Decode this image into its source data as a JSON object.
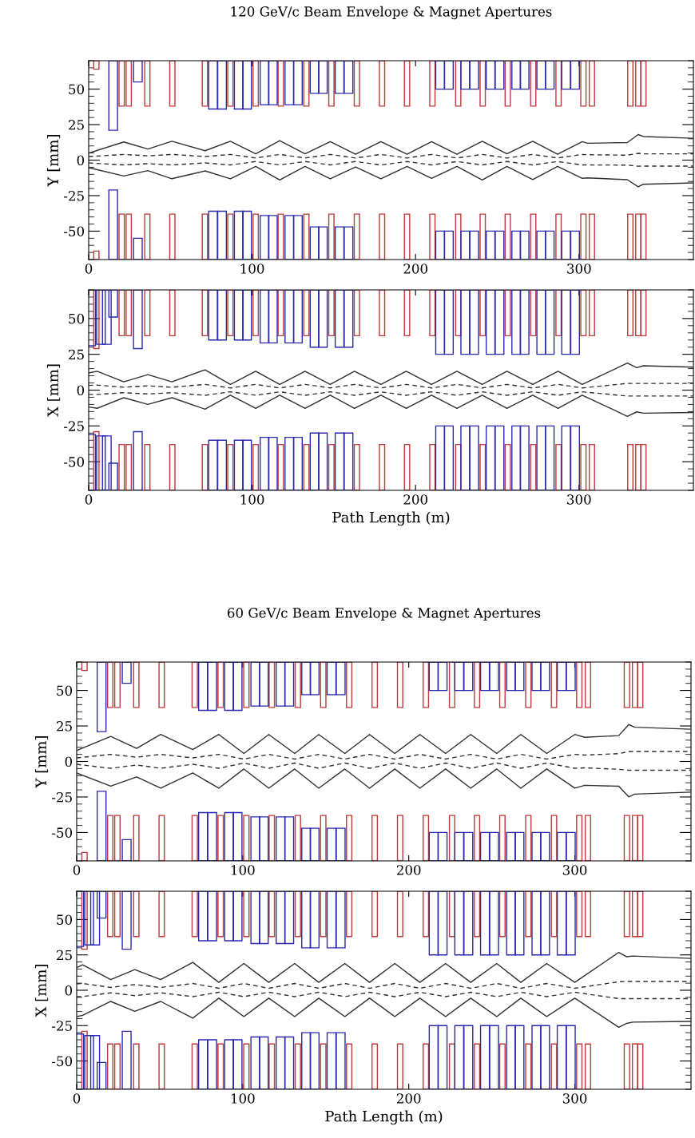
{
  "chart_data": [
    {
      "type": "line",
      "title": "120 GeV/c Beam Envelope & Magnet Apertures",
      "ylabel": "Y [mm]",
      "xlim": [
        0,
        370
      ],
      "xticks": [
        0,
        100,
        200,
        300
      ],
      "ylim": [
        -70,
        70
      ],
      "yticks": [
        -50,
        -25,
        0,
        25,
        50
      ],
      "grid": false,
      "x": [
        0,
        21.5,
        36.2,
        50.9,
        71.2,
        86.7,
        102.2,
        116.9,
        132.4,
        147.8,
        163.3,
        178.8,
        194.8,
        209.8,
        225.3,
        240.8,
        255.9,
        271.7,
        286.9,
        302,
        305.2,
        329.6,
        336.2,
        339.4,
        370
      ],
      "series": [
        {
          "color": "#303030",
          "line_style": "solid",
          "values": [
            4.9,
            12.8,
            7.8,
            13.3,
            6.6,
            13.3,
            4.4,
            13.7,
            4.4,
            13,
            4.1,
            13,
            4.1,
            13,
            4.1,
            13.3,
            4.4,
            13.3,
            4.1,
            13,
            11.9,
            12.4,
            18,
            16.6,
            15.4
          ]
        },
        {
          "color": "#303030",
          "line_style": "solid",
          "values": [
            -5.3,
            -11.2,
            -7.4,
            -13.1,
            -7.6,
            -13.1,
            -4.4,
            -14,
            -4.4,
            -13.2,
            -4.8,
            -13.2,
            -4.4,
            -12.8,
            -4.4,
            -14,
            -4.4,
            -13.7,
            -4.4,
            -12.8,
            -12.5,
            -13.8,
            -18.8,
            -17,
            -16
          ]
        },
        {
          "color": "#303030",
          "line_style": "dashed",
          "values": [
            2.5,
            4,
            3,
            4,
            2.5,
            4,
            1.5,
            4,
            1.5,
            4,
            1.5,
            4,
            1.5,
            4,
            1.5,
            4,
            1.5,
            4,
            1.5,
            4,
            3.8,
            3.5,
            4.8,
            4.4,
            4.4
          ]
        },
        {
          "color": "#303030",
          "line_style": "dashed",
          "values": [
            -2,
            -3.4,
            -2.5,
            -3.4,
            -2,
            -3.4,
            -1,
            -3.4,
            -1,
            -3.4,
            -1,
            -3.4,
            -1,
            -3.4,
            -1,
            -3.4,
            -1,
            -3.4,
            -1,
            -3.4,
            -3.4,
            -3.5,
            -4.3,
            -4.2,
            -4.2
          ]
        },
        {
          "type": "bar",
          "color": "#c0393b",
          "x": [
            4.7,
            20.2,
            24.5,
            35.9,
            51.2,
            71.1,
            86.7,
            102.2,
            117.5,
            133.2,
            148.5,
            164.1,
            179.5,
            194.8,
            210.3,
            226.1,
            241.1,
            256.4,
            272.0,
            287.5,
            302.7,
            307.9,
            331.4,
            336.3,
            339.4
          ],
          "base": [
            64,
            38,
            38,
            38,
            38,
            38,
            38,
            38,
            38,
            38,
            38,
            38,
            38,
            38,
            38,
            38,
            38,
            38,
            38,
            38,
            38,
            38,
            38,
            38,
            38
          ],
          "values": [
            6,
            32,
            32,
            32,
            32,
            32,
            32,
            32,
            32,
            32,
            32,
            32,
            32,
            32,
            32,
            32,
            32,
            32,
            32,
            32,
            32,
            32,
            32,
            32,
            32
          ]
        },
        {
          "type": "bar",
          "color": "#c0393b",
          "x": [
            4.7,
            20.2,
            24.5,
            35.9,
            51.2,
            71.1,
            86.7,
            102.2,
            117.5,
            133.2,
            148.5,
            164.1,
            179.5,
            194.8,
            210.3,
            226.1,
            241.1,
            256.4,
            272.0,
            287.5,
            302.7,
            307.9,
            331.4,
            336.3,
            339.4
          ],
          "base": [
            -64,
            -38,
            -38,
            -38,
            -38,
            -38,
            -38,
            -38,
            -38,
            -38,
            -38,
            -38,
            -38,
            -38,
            -38,
            -38,
            -38,
            -38,
            -38,
            -38,
            -38,
            -38,
            -38,
            -38,
            -38
          ],
          "values": [
            -6,
            -32,
            -32,
            -32,
            -32,
            -32,
            -32,
            -32,
            -32,
            -32,
            -32,
            -32,
            -32,
            -32,
            -32,
            -32,
            -32,
            -32,
            -32,
            -32,
            -32,
            -32,
            -32,
            -32,
            -32
          ]
        },
        {
          "type": "bar",
          "color": "#2a2ab0",
          "x": [
            15.0,
            30.1,
            76.1,
            81.6,
            91.8,
            96.9,
            107.6,
            112.7,
            122.8,
            128.0,
            138.2,
            143.3,
            153.5,
            159.0,
            215.0,
            220.4,
            230.4,
            235.9,
            245.9,
            251.4,
            261.6,
            266.7,
            276.9,
            282.1,
            292.1,
            297.6
          ],
          "base": [
            21,
            55,
            36,
            36,
            36,
            36,
            39,
            39,
            39,
            39,
            47,
            47,
            47,
            47,
            50,
            50,
            50,
            50,
            50,
            50,
            50,
            50,
            50,
            50,
            50,
            50
          ],
          "values": [
            49,
            15,
            34,
            34,
            34,
            34,
            31,
            31,
            31,
            31,
            23,
            23,
            23,
            23,
            20,
            20,
            20,
            20,
            20,
            20,
            20,
            20,
            20,
            20,
            20,
            20
          ]
        },
        {
          "type": "bar",
          "color": "#2a2ab0",
          "x": [
            15.0,
            30.1,
            76.1,
            81.6,
            91.8,
            96.9,
            107.6,
            112.7,
            122.8,
            128.0,
            138.2,
            143.3,
            153.5,
            159.0,
            215.0,
            220.4,
            230.4,
            235.9,
            245.9,
            251.4,
            261.6,
            266.7,
            276.9,
            282.1,
            292.1,
            297.6
          ],
          "base": [
            -21,
            -55,
            -36,
            -36,
            -36,
            -36,
            -39,
            -39,
            -39,
            -39,
            -47,
            -47,
            -47,
            -47,
            -50,
            -50,
            -50,
            -50,
            -50,
            -50,
            -50,
            -50,
            -50,
            -50,
            -50,
            -50
          ],
          "values": [
            -49,
            -15,
            -34,
            -34,
            -34,
            -34,
            -31,
            -31,
            -31,
            -31,
            -23,
            -23,
            -23,
            -23,
            -20,
            -20,
            -20,
            -20,
            -20,
            -20,
            -20,
            -20,
            -20,
            -20,
            -20,
            -20
          ]
        }
      ]
    },
    {
      "type": "line",
      "xlabel": "Path Length (m)",
      "ylabel": "X [mm]",
      "xlim": [
        0,
        370
      ],
      "xticks": [
        0,
        100,
        200,
        300
      ],
      "ylim": [
        -70,
        70
      ],
      "yticks": [
        -50,
        -25,
        0,
        25,
        50
      ],
      "grid": false,
      "x": [
        0,
        5.2,
        21.5,
        36.2,
        50.9,
        71.2,
        86.7,
        102.2,
        116.9,
        132.4,
        147.8,
        162.6,
        178.8,
        194.3,
        209.8,
        225.3,
        240.8,
        255.9,
        271.7,
        287.2,
        302,
        329.6,
        335.3,
        339.4,
        370
      ],
      "series": [
        {
          "color": "#303030",
          "line_style": "solid",
          "values": [
            12,
            13.2,
            5.8,
            10.8,
            5.8,
            14.2,
            4,
            13.2,
            4,
            13.2,
            4,
            13.2,
            4,
            13.2,
            4,
            13.2,
            4,
            13.2,
            4,
            13.2,
            4,
            18.9,
            15.7,
            17,
            16
          ]
        },
        {
          "color": "#303030",
          "line_style": "solid",
          "values": [
            -11.8,
            -12.7,
            -5.3,
            -10,
            -5.3,
            -13.3,
            -3.5,
            -12.7,
            -3.5,
            -12.7,
            -3.5,
            -12.7,
            -3.5,
            -12.7,
            -3.5,
            -12.7,
            -3.5,
            -12.7,
            -3.5,
            -12.7,
            -3.5,
            -18.3,
            -15.2,
            -16.1,
            -15.6
          ]
        },
        {
          "color": "#303030",
          "line_style": "dashed",
          "values": [
            3.3,
            3.5,
            2,
            3,
            2,
            4,
            1.5,
            4,
            1.5,
            4,
            1.5,
            4,
            1.5,
            4,
            1.5,
            4,
            1.5,
            4,
            1.5,
            4,
            1.5,
            4.7,
            4.7,
            4.7,
            4.7
          ]
        },
        {
          "color": "#303030",
          "line_style": "dashed",
          "values": [
            -3,
            -3,
            -1.8,
            -2.7,
            -1.8,
            -3.6,
            -1.2,
            -3.6,
            -1.2,
            -3.6,
            -1.2,
            -3.6,
            -1.2,
            -3.6,
            -1.2,
            -3.6,
            -1.2,
            -3.6,
            -1.2,
            -3.6,
            -1.2,
            -4.1,
            -4.1,
            -4.1,
            -4.1
          ]
        },
        {
          "type": "bar",
          "color": "#c0393b",
          "x": [
            4.7,
            20.2,
            24.5,
            35.9,
            51.2,
            71.1,
            86.7,
            102.2,
            117.5,
            133.2,
            148.5,
            164.1,
            179.5,
            194.8,
            210.3,
            226.1,
            241.1,
            256.4,
            272.0,
            287.5,
            302.7,
            307.9,
            331.4,
            336.3,
            339.4
          ],
          "base": [
            29,
            38,
            38,
            38,
            38,
            38,
            38,
            38,
            38,
            38,
            38,
            38,
            38,
            38,
            38,
            38,
            38,
            38,
            38,
            38,
            38,
            38,
            38,
            38,
            38
          ],
          "values": [
            41,
            32,
            32,
            32,
            32,
            32,
            32,
            32,
            32,
            32,
            32,
            32,
            32,
            32,
            32,
            32,
            32,
            32,
            32,
            32,
            32,
            32,
            32,
            32,
            32
          ]
        },
        {
          "type": "bar",
          "color": "#c0393b",
          "x": [
            4.7,
            20.2,
            24.5,
            35.9,
            51.2,
            71.1,
            86.7,
            102.2,
            117.5,
            133.2,
            148.5,
            164.1,
            179.5,
            194.8,
            210.3,
            226.1,
            241.1,
            256.4,
            272.0,
            287.5,
            302.7,
            307.9,
            331.4,
            336.3,
            339.4
          ],
          "base": [
            -29,
            -38,
            -38,
            -38,
            -38,
            -38,
            -38,
            -38,
            -38,
            -38,
            -38,
            -38,
            -38,
            -38,
            -38,
            -38,
            -38,
            -38,
            -38,
            -38,
            -38,
            -38,
            -38,
            -38,
            -38
          ],
          "values": [
            -41,
            -32,
            -32,
            -32,
            -32,
            -32,
            -32,
            -32,
            -32,
            -32,
            -32,
            -32,
            -32,
            -32,
            -32,
            -32,
            -32,
            -32,
            -32,
            -32,
            -32,
            -32,
            -32,
            -32,
            -32
          ]
        },
        {
          "type": "bar",
          "color": "#2a2ab0",
          "x": [
            1.5,
            7.5,
            11.1,
            15.0,
            30.1,
            76.1,
            81.6,
            91.8,
            96.9,
            107.6,
            112.7,
            122.8,
            128.0,
            138.2,
            143.3,
            153.5,
            159.0,
            215.0,
            220.4,
            230.4,
            235.9,
            245.9,
            251.4,
            261.6,
            266.7,
            276.9,
            282.1,
            292.1,
            297.6
          ],
          "base": [
            31,
            32,
            32,
            51,
            29,
            35,
            35,
            35,
            35,
            33,
            33,
            33,
            33,
            30,
            30,
            30,
            30,
            25,
            25,
            25,
            25,
            25,
            25,
            25,
            25,
            25,
            25,
            25,
            25
          ],
          "values": [
            39,
            38,
            38,
            19,
            41,
            35,
            35,
            35,
            35,
            37,
            37,
            37,
            37,
            40,
            40,
            40,
            40,
            45,
            45,
            45,
            45,
            45,
            45,
            45,
            45,
            45,
            45,
            45,
            45
          ]
        },
        {
          "type": "bar",
          "color": "#2a2ab0",
          "x": [
            1.5,
            7.5,
            11.1,
            15.0,
            30.1,
            76.1,
            81.6,
            91.8,
            96.9,
            107.6,
            112.7,
            122.8,
            128.0,
            138.2,
            143.3,
            153.5,
            159.0,
            215.0,
            220.4,
            230.4,
            235.9,
            245.9,
            251.4,
            261.6,
            266.7,
            276.9,
            282.1,
            292.1,
            297.6
          ],
          "base": [
            -31,
            -32,
            -32,
            -51,
            -29,
            -35,
            -35,
            -35,
            -35,
            -33,
            -33,
            -33,
            -33,
            -30,
            -30,
            -30,
            -30,
            -25,
            -25,
            -25,
            -25,
            -25,
            -25,
            -25,
            -25,
            -25,
            -25,
            -25,
            -25
          ],
          "values": [
            -39,
            -38,
            -38,
            -19,
            -41,
            -35,
            -35,
            -35,
            -35,
            -37,
            -37,
            -37,
            -37,
            -40,
            -40,
            -40,
            -40,
            -45,
            -45,
            -45,
            -45,
            -45,
            -45,
            -45,
            -45,
            -45,
            -45,
            -45,
            -45
          ]
        }
      ]
    },
    {
      "type": "line",
      "title": "60 GeV/c Beam Envelope & Magnet Apertures",
      "ylabel": "Y [mm]",
      "xlim": [
        0,
        370
      ],
      "xticks": [
        0,
        100,
        200,
        300
      ],
      "ylim": [
        -70,
        70
      ],
      "yticks": [
        -50,
        -25,
        0,
        25,
        50
      ],
      "grid": false,
      "x": [
        0,
        20.5,
        36.1,
        50.6,
        69.9,
        85.6,
        100.7,
        115.7,
        131.3,
        145.8,
        161.5,
        176.4,
        191.6,
        206.7,
        222.2,
        237.3,
        253,
        267.5,
        283.1,
        300,
        306,
        326.5,
        332.5,
        336.1,
        370
      ],
      "series": [
        {
          "color": "#303030",
          "line_style": "solid",
          "values": [
            7.8,
            17.6,
            9.2,
            19,
            8.4,
            19,
            5.6,
            19,
            5.6,
            19,
            5.6,
            19,
            5.6,
            19,
            5.6,
            19,
            5.6,
            19,
            5.6,
            19,
            17,
            18.2,
            26,
            24.1,
            22.7
          ]
        },
        {
          "color": "#303030",
          "line_style": "solid",
          "values": [
            -8.1,
            -17.4,
            -10.9,
            -18.8,
            -8.1,
            -18.8,
            -5.3,
            -18.8,
            -5.3,
            -18.8,
            -5.3,
            -18.8,
            -5.3,
            -18.8,
            -5.3,
            -18.8,
            -5.3,
            -18.8,
            -5.3,
            -18.8,
            -16.8,
            -17.4,
            -24.9,
            -23,
            -21.6
          ]
        },
        {
          "color": "#303030",
          "line_style": "dashed",
          "values": [
            2.5,
            5,
            3,
            5,
            2.5,
            5,
            1.7,
            5,
            1.7,
            5,
            1.7,
            5,
            1.7,
            5,
            1.7,
            5,
            1.7,
            5,
            1.7,
            5,
            4.5,
            5.5,
            7,
            7,
            7
          ]
        },
        {
          "color": "#303030",
          "line_style": "dashed",
          "values": [
            -2,
            -4.8,
            -2.5,
            -4.8,
            -2,
            -4.8,
            -1.1,
            -4.8,
            -1.1,
            -4.8,
            -1.1,
            -4.8,
            -1.1,
            -4.8,
            -1.1,
            -4.8,
            -1.1,
            -4.8,
            -1.1,
            -4.8,
            -4.5,
            -5.5,
            -6.2,
            -6.2,
            -6.2
          ]
        },
        {
          "type": "bar",
          "color": "#c0393b",
          "x": [
            4.7,
            20.2,
            24.5,
            35.9,
            51.2,
            71.1,
            86.7,
            102.2,
            117.5,
            133.2,
            148.5,
            164.1,
            179.5,
            194.8,
            210.3,
            226.1,
            241.1,
            256.4,
            272.0,
            287.5,
            302.7,
            307.9,
            331.4,
            336.3,
            339.4
          ],
          "base": [
            64,
            38,
            38,
            38,
            38,
            38,
            38,
            38,
            38,
            38,
            38,
            38,
            38,
            38,
            38,
            38,
            38,
            38,
            38,
            38,
            38,
            38,
            38,
            38,
            38
          ],
          "values": [
            6,
            32,
            32,
            32,
            32,
            32,
            32,
            32,
            32,
            32,
            32,
            32,
            32,
            32,
            32,
            32,
            32,
            32,
            32,
            32,
            32,
            32,
            32,
            32,
            32
          ]
        },
        {
          "type": "bar",
          "color": "#c0393b",
          "x": [
            4.7,
            20.2,
            24.5,
            35.9,
            51.2,
            71.1,
            86.7,
            102.2,
            117.5,
            133.2,
            148.5,
            164.1,
            179.5,
            194.8,
            210.3,
            226.1,
            241.1,
            256.4,
            272.0,
            287.5,
            302.7,
            307.9,
            331.4,
            336.3,
            339.4
          ],
          "base": [
            -64,
            -38,
            -38,
            -38,
            -38,
            -38,
            -38,
            -38,
            -38,
            -38,
            -38,
            -38,
            -38,
            -38,
            -38,
            -38,
            -38,
            -38,
            -38,
            -38,
            -38,
            -38,
            -38,
            -38,
            -38
          ],
          "values": [
            -6,
            -32,
            -32,
            -32,
            -32,
            -32,
            -32,
            -32,
            -32,
            -32,
            -32,
            -32,
            -32,
            -32,
            -32,
            -32,
            -32,
            -32,
            -32,
            -32,
            -32,
            -32,
            -32,
            -32,
            -32
          ]
        },
        {
          "type": "bar",
          "color": "#2a2ab0",
          "x": [
            15.0,
            30.1,
            76.1,
            81.6,
            91.8,
            96.9,
            107.6,
            112.7,
            122.8,
            128.0,
            138.2,
            143.3,
            153.5,
            159.0,
            215.0,
            220.4,
            230.4,
            235.9,
            245.9,
            251.4,
            261.6,
            266.7,
            276.9,
            282.1,
            292.1,
            297.6
          ],
          "base": [
            21,
            55,
            36,
            36,
            36,
            36,
            39,
            39,
            39,
            39,
            47,
            47,
            47,
            47,
            50,
            50,
            50,
            50,
            50,
            50,
            50,
            50,
            50,
            50,
            50,
            50
          ],
          "values": [
            49,
            15,
            34,
            34,
            34,
            34,
            31,
            31,
            31,
            31,
            23,
            23,
            23,
            23,
            20,
            20,
            20,
            20,
            20,
            20,
            20,
            20,
            20,
            20,
            20,
            20
          ]
        },
        {
          "type": "bar",
          "color": "#2a2ab0",
          "x": [
            15.0,
            30.1,
            76.1,
            81.6,
            91.8,
            96.9,
            107.6,
            112.7,
            122.8,
            128.0,
            138.2,
            143.3,
            153.5,
            159.0,
            215.0,
            220.4,
            230.4,
            235.9,
            245.9,
            251.4,
            261.6,
            266.7,
            276.9,
            282.1,
            292.1,
            297.6
          ],
          "base": [
            -21,
            -55,
            -36,
            -36,
            -36,
            -36,
            -39,
            -39,
            -39,
            -39,
            -47,
            -47,
            -47,
            -47,
            -50,
            -50,
            -50,
            -50,
            -50,
            -50,
            -50,
            -50,
            -50,
            -50,
            -50,
            -50
          ],
          "values": [
            -49,
            -15,
            -34,
            -34,
            -34,
            -34,
            -31,
            -31,
            -31,
            -31,
            -23,
            -23,
            -23,
            -23,
            -20,
            -20,
            -20,
            -20,
            -20,
            -20,
            -20,
            -20,
            -20,
            -20,
            -20,
            -20
          ]
        }
      ]
    },
    {
      "type": "line",
      "xlabel": "Path Length (m)",
      "ylabel": "X [mm]",
      "xlim": [
        0,
        370
      ],
      "xticks": [
        0,
        100,
        200,
        300
      ],
      "ylim": [
        -70,
        70
      ],
      "yticks": [
        -50,
        -25,
        0,
        25,
        50
      ],
      "grid": false,
      "x": [
        0,
        3.6,
        20.5,
        35,
        50.6,
        69.9,
        85.6,
        100.7,
        115.7,
        131.3,
        145.8,
        161.5,
        176.4,
        191.6,
        206.7,
        222.2,
        237.3,
        253,
        267.5,
        283.1,
        300,
        326.5,
        331.3,
        334.9,
        370
      ],
      "series": [
        {
          "color": "#303030",
          "line_style": "solid",
          "values": [
            16,
            18,
            7.6,
            14.6,
            7.6,
            19.7,
            5.6,
            18.9,
            5.6,
            18.9,
            5.6,
            18.9,
            5.6,
            18.9,
            5.6,
            18.9,
            5.6,
            18.9,
            5.6,
            18.9,
            5.6,
            26.8,
            23.7,
            24.2,
            22.5
          ]
        },
        {
          "color": "#303030",
          "line_style": "solid",
          "values": [
            -18.6,
            -17.7,
            -7.9,
            -14.9,
            -7.9,
            -19.7,
            -5.6,
            -18.6,
            -5.6,
            -18.6,
            -5.6,
            -18.6,
            -5.6,
            -18.6,
            -5.6,
            -18.6,
            -5.6,
            -18.6,
            -5.6,
            -18.6,
            -5.6,
            -26.2,
            -23.4,
            -22.5,
            -22
          ]
        },
        {
          "color": "#303030",
          "line_style": "dashed",
          "values": [
            4.5,
            4.8,
            2,
            4,
            2,
            4.8,
            1.4,
            4.8,
            1.4,
            4.8,
            1.4,
            4.8,
            1.4,
            4.8,
            1.4,
            4.8,
            1.4,
            4.8,
            1.4,
            4.8,
            1.4,
            6,
            6.2,
            6.2,
            6.2
          ]
        },
        {
          "color": "#303030",
          "line_style": "dashed",
          "values": [
            -4.5,
            -4.5,
            -1.8,
            -3.8,
            -1.8,
            -4.5,
            -1.4,
            -4.5,
            -1.4,
            -4.5,
            -1.4,
            -4.5,
            -1.4,
            -4.5,
            -1.4,
            -4.5,
            -1.4,
            -4.5,
            -1.4,
            -4.5,
            -1.4,
            -5.9,
            -5.9,
            -5.9,
            -5.9
          ]
        },
        {
          "type": "bar",
          "color": "#c0393b",
          "x": [
            4.7,
            20.2,
            24.5,
            35.9,
            51.2,
            71.1,
            86.7,
            102.2,
            117.5,
            133.2,
            148.5,
            164.1,
            179.5,
            194.8,
            210.3,
            226.1,
            241.1,
            256.4,
            272.0,
            287.5,
            302.7,
            307.9,
            331.4,
            336.3,
            339.4
          ],
          "base": [
            29,
            38,
            38,
            38,
            38,
            38,
            38,
            38,
            38,
            38,
            38,
            38,
            38,
            38,
            38,
            38,
            38,
            38,
            38,
            38,
            38,
            38,
            38,
            38,
            38
          ],
          "values": [
            41,
            32,
            32,
            32,
            32,
            32,
            32,
            32,
            32,
            32,
            32,
            32,
            32,
            32,
            32,
            32,
            32,
            32,
            32,
            32,
            32,
            32,
            32,
            32,
            32
          ]
        },
        {
          "type": "bar",
          "color": "#c0393b",
          "x": [
            4.7,
            20.2,
            24.5,
            35.9,
            51.2,
            71.1,
            86.7,
            102.2,
            117.5,
            133.2,
            148.5,
            164.1,
            179.5,
            194.8,
            210.3,
            226.1,
            241.1,
            256.4,
            272.0,
            287.5,
            302.7,
            307.9,
            331.4,
            336.3,
            339.4
          ],
          "base": [
            -29,
            -38,
            -38,
            -38,
            -38,
            -38,
            -38,
            -38,
            -38,
            -38,
            -38,
            -38,
            -38,
            -38,
            -38,
            -38,
            -38,
            -38,
            -38,
            -38,
            -38,
            -38,
            -38,
            -38,
            -38
          ],
          "values": [
            -41,
            -32,
            -32,
            -32,
            -32,
            -32,
            -32,
            -32,
            -32,
            -32,
            -32,
            -32,
            -32,
            -32,
            -32,
            -32,
            -32,
            -32,
            -32,
            -32,
            -32,
            -32,
            -32,
            -32,
            -32
          ]
        },
        {
          "type": "bar",
          "color": "#2a2ab0",
          "x": [
            1.5,
            7.5,
            11.1,
            15.0,
            30.1,
            76.1,
            81.6,
            91.8,
            96.9,
            107.6,
            112.7,
            122.8,
            128.0,
            138.2,
            143.3,
            153.5,
            159.0,
            215.0,
            220.4,
            230.4,
            235.9,
            245.9,
            251.4,
            261.6,
            266.7,
            276.9,
            282.1,
            292.1,
            297.6
          ],
          "base": [
            31,
            32,
            32,
            51,
            29,
            35,
            35,
            35,
            35,
            33,
            33,
            33,
            33,
            30,
            30,
            30,
            30,
            25,
            25,
            25,
            25,
            25,
            25,
            25,
            25,
            25,
            25,
            25,
            25
          ],
          "values": [
            39,
            38,
            38,
            19,
            41,
            35,
            35,
            35,
            35,
            37,
            37,
            37,
            37,
            40,
            40,
            40,
            40,
            45,
            45,
            45,
            45,
            45,
            45,
            45,
            45,
            45,
            45,
            45,
            45
          ]
        },
        {
          "type": "bar",
          "color": "#2a2ab0",
          "x": [
            1.5,
            7.5,
            11.1,
            15.0,
            30.1,
            76.1,
            81.6,
            91.8,
            96.9,
            107.6,
            112.7,
            122.8,
            128.0,
            138.2,
            143.3,
            153.5,
            159.0,
            215.0,
            220.4,
            230.4,
            235.9,
            245.9,
            251.4,
            261.6,
            266.7,
            276.9,
            282.1,
            292.1,
            297.6
          ],
          "base": [
            -31,
            -32,
            -32,
            -51,
            -29,
            -35,
            -35,
            -35,
            -35,
            -33,
            -33,
            -33,
            -33,
            -30,
            -30,
            -30,
            -30,
            -25,
            -25,
            -25,
            -25,
            -25,
            -25,
            -25,
            -25,
            -25,
            -25,
            -25,
            -25
          ],
          "values": [
            -39,
            -38,
            -38,
            -19,
            -41,
            -35,
            -35,
            -35,
            -35,
            -37,
            -37,
            -37,
            -37,
            -40,
            -40,
            -40,
            -40,
            -45,
            -45,
            -45,
            -45,
            -45,
            -45,
            -45,
            -45,
            -45,
            -45,
            -45,
            -45
          ]
        }
      ]
    }
  ]
}
